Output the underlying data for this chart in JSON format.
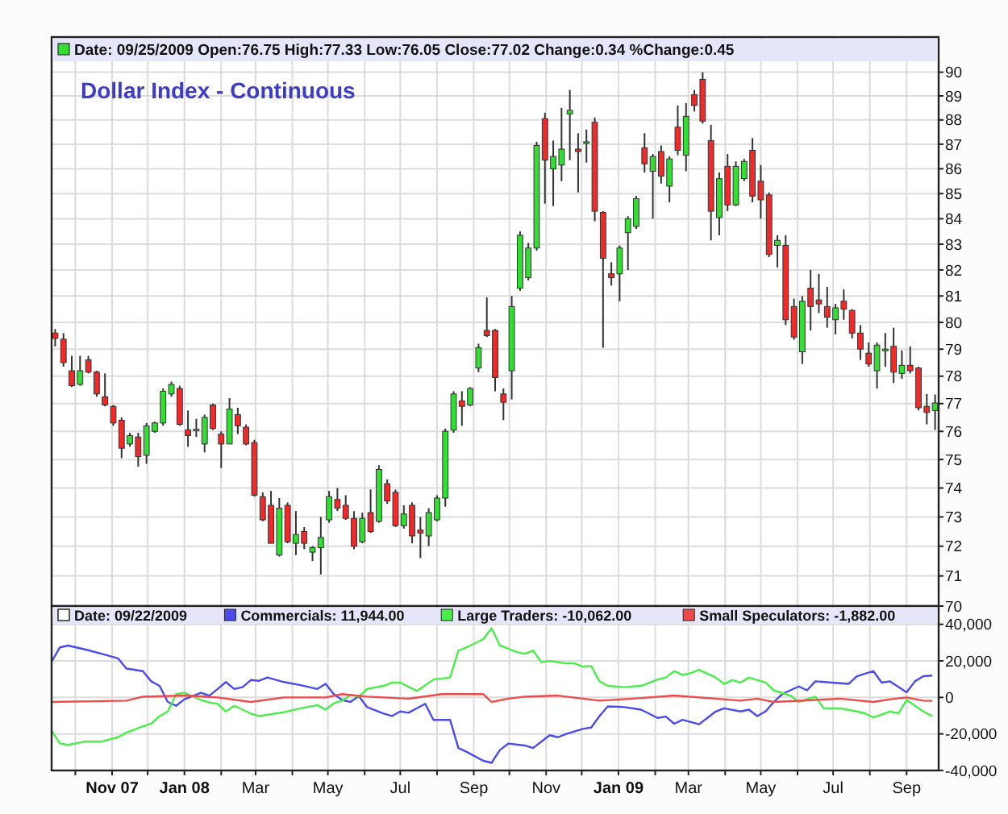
{
  "chart_data": [
    {
      "type": "candlestick",
      "title": "Dollar Index - Continuous",
      "subtitle": "Date: 09/25/2009 Open:76.75 High:77.33 Low:76.05 Close:77.02 Change:0.34 %Change:0.45",
      "log": true,
      "grid": true,
      "tick_labels": "y",
      "xlim": [
        "2007-09-11",
        "2009-09-28"
      ],
      "xticks": [
        {
          "value": "2007-10-01",
          "label": null
        },
        {
          "value": "2007-11-01",
          "label": null
        },
        {
          "value": "2007-12-01",
          "label": null
        },
        {
          "value": "2008-01-01",
          "label": null
        },
        {
          "value": "2008-02-01",
          "label": null
        },
        {
          "value": "2008-03-01",
          "label": null
        },
        {
          "value": "2008-04-01",
          "label": null
        },
        {
          "value": "2008-05-01",
          "label": null
        },
        {
          "value": "2008-06-01",
          "label": null
        },
        {
          "value": "2008-07-01",
          "label": null
        },
        {
          "value": "2008-08-01",
          "label": null
        },
        {
          "value": "2008-09-01",
          "label": null
        },
        {
          "value": "2008-10-01",
          "label": null
        },
        {
          "value": "2008-11-01",
          "label": null
        },
        {
          "value": "2008-12-01",
          "label": null
        },
        {
          "value": "2009-01-01",
          "label": null
        },
        {
          "value": "2009-02-01",
          "label": null
        },
        {
          "value": "2009-03-01",
          "label": null
        },
        {
          "value": "2009-04-01",
          "label": null
        },
        {
          "value": "2009-05-01",
          "label": null
        },
        {
          "value": "2009-06-01",
          "label": null
        },
        {
          "value": "2009-07-01",
          "label": null
        },
        {
          "value": "2009-08-01",
          "label": null
        },
        {
          "value": "2009-09-01",
          "label": null
        }
      ],
      "ylim": [
        70,
        91.5
      ],
      "yticks": [
        70,
        71,
        72,
        73,
        74,
        75,
        76,
        77,
        78,
        79,
        80,
        81,
        82,
        83,
        84,
        85,
        86,
        87,
        88,
        89,
        90
      ],
      "x": [
        "2007-09-14",
        "2007-09-21",
        "2007-09-28",
        "2007-10-05",
        "2007-10-12",
        "2007-10-19",
        "2007-10-26",
        "2007-11-02",
        "2007-11-09",
        "2007-11-16",
        "2007-11-23",
        "2007-11-30",
        "2007-12-07",
        "2007-12-14",
        "2007-12-21",
        "2007-12-28",
        "2008-01-04",
        "2008-01-11",
        "2008-01-18",
        "2008-01-25",
        "2008-02-01",
        "2008-02-08",
        "2008-02-15",
        "2008-02-22",
        "2008-02-29",
        "2008-03-07",
        "2008-03-14",
        "2008-03-21",
        "2008-03-28",
        "2008-04-04",
        "2008-04-11",
        "2008-04-18",
        "2008-04-25",
        "2008-05-02",
        "2008-05-09",
        "2008-05-16",
        "2008-05-23",
        "2008-05-30",
        "2008-06-06",
        "2008-06-13",
        "2008-06-20",
        "2008-06-27",
        "2008-07-04",
        "2008-07-11",
        "2008-07-18",
        "2008-07-25",
        "2008-08-01",
        "2008-08-08",
        "2008-08-15",
        "2008-08-22",
        "2008-08-29",
        "2008-09-05",
        "2008-09-12",
        "2008-09-19",
        "2008-09-26",
        "2008-10-03",
        "2008-10-10",
        "2008-10-17",
        "2008-10-24",
        "2008-10-31",
        "2008-11-07",
        "2008-11-14",
        "2008-11-21",
        "2008-11-28",
        "2008-12-05",
        "2008-12-12",
        "2008-12-19",
        "2008-12-26",
        "2009-01-02",
        "2009-01-09",
        "2009-01-16",
        "2009-01-23",
        "2009-01-30",
        "2009-02-06",
        "2009-02-13",
        "2009-02-20",
        "2009-02-27",
        "2009-03-06",
        "2009-03-13",
        "2009-03-20",
        "2009-03-27",
        "2009-04-03",
        "2009-04-10",
        "2009-04-17",
        "2009-04-24",
        "2009-05-01",
        "2009-05-08",
        "2009-05-15",
        "2009-05-22",
        "2009-05-29",
        "2009-06-05",
        "2009-06-12",
        "2009-06-19",
        "2009-06-26",
        "2009-07-03",
        "2009-07-10",
        "2009-07-17",
        "2009-07-24",
        "2009-07-31",
        "2009-08-07",
        "2009-08-14",
        "2009-08-21",
        "2009-08-28",
        "2009-09-04",
        "2009-09-11",
        "2009-09-18",
        "2009-09-25"
      ],
      "ohlc": [
        [
          79.6,
          79.75,
          79.1,
          79.4
        ],
        [
          79.37,
          79.6,
          78.35,
          78.5
        ],
        [
          78.2,
          78.75,
          77.6,
          77.65
        ],
        [
          77.7,
          78.75,
          77.65,
          78.2
        ],
        [
          78.6,
          78.75,
          78.1,
          78.15
        ],
        [
          78.15,
          78.2,
          77.25,
          77.35
        ],
        [
          77.25,
          78.1,
          76.9,
          76.95
        ],
        [
          76.9,
          76.95,
          76.2,
          76.3
        ],
        [
          76.4,
          76.5,
          75.05,
          75.4
        ],
        [
          75.55,
          75.95,
          75.45,
          75.85
        ],
        [
          75.8,
          75.95,
          74.75,
          75.1
        ],
        [
          75.15,
          76.3,
          74.85,
          76.2
        ],
        [
          76.0,
          76.35,
          75.95,
          76.3
        ],
        [
          76.3,
          77.55,
          76.2,
          77.45
        ],
        [
          77.35,
          77.8,
          77.25,
          77.7
        ],
        [
          77.55,
          77.65,
          76.2,
          76.25
        ],
        [
          76.05,
          76.75,
          75.45,
          75.85
        ],
        [
          76.03,
          76.45,
          75.8,
          76.08
        ],
        [
          75.55,
          76.6,
          75.25,
          76.5
        ],
        [
          76.95,
          77.0,
          76.05,
          76.1
        ],
        [
          75.9,
          76.0,
          74.7,
          75.55
        ],
        [
          75.55,
          77.2,
          75.55,
          76.8
        ],
        [
          76.6,
          76.85,
          75.9,
          76.2
        ],
        [
          76.15,
          76.25,
          75.5,
          75.55
        ],
        [
          75.6,
          75.7,
          73.7,
          73.75
        ],
        [
          73.7,
          73.85,
          72.85,
          72.9
        ],
        [
          73.4,
          73.9,
          72.1,
          72.1
        ],
        [
          71.7,
          73.65,
          71.65,
          73.3
        ],
        [
          73.4,
          73.5,
          72.1,
          72.15
        ],
        [
          72.1,
          73.2,
          71.7,
          72.4
        ],
        [
          72.5,
          72.65,
          71.9,
          72.1
        ],
        [
          71.8,
          72.0,
          71.5,
          71.95
        ],
        [
          71.95,
          73.0,
          71.05,
          72.3
        ],
        [
          72.9,
          73.9,
          72.8,
          73.7
        ],
        [
          73.6,
          74.0,
          73.2,
          73.3
        ],
        [
          73.4,
          73.75,
          72.9,
          72.95
        ],
        [
          72.95,
          73.2,
          71.9,
          72.0
        ],
        [
          72.15,
          73.15,
          72.1,
          72.95
        ],
        [
          73.15,
          73.95,
          72.45,
          72.5
        ],
        [
          72.85,
          74.8,
          72.8,
          74.65
        ],
        [
          74.15,
          74.3,
          73.45,
          73.55
        ],
        [
          73.85,
          73.95,
          72.65,
          72.7
        ],
        [
          72.7,
          73.4,
          72.6,
          73.1
        ],
        [
          73.4,
          73.5,
          72.1,
          72.35
        ],
        [
          72.55,
          73.0,
          71.6,
          72.45
        ],
        [
          72.35,
          73.3,
          72.0,
          73.15
        ],
        [
          72.9,
          73.75,
          72.85,
          73.65
        ],
        [
          73.65,
          76.1,
          73.35,
          76.0
        ],
        [
          76.05,
          77.45,
          75.95,
          77.35
        ],
        [
          77.1,
          77.45,
          76.2,
          76.9
        ],
        [
          76.95,
          77.6,
          76.9,
          77.55
        ],
        [
          78.3,
          79.2,
          78.15,
          79.05
        ],
        [
          79.7,
          80.95,
          79.45,
          79.5
        ],
        [
          79.7,
          79.75,
          77.45,
          77.95
        ],
        [
          77.35,
          77.55,
          76.4,
          77.05
        ],
        [
          78.2,
          81.0,
          77.15,
          80.6
        ],
        [
          81.3,
          83.5,
          81.2,
          83.35
        ],
        [
          81.7,
          83.05,
          81.6,
          82.85
        ],
        [
          82.85,
          87.1,
          82.75,
          86.95
        ],
        [
          88.05,
          88.3,
          84.6,
          86.35
        ],
        [
          86.0,
          87.15,
          84.5,
          86.5
        ],
        [
          86.15,
          88.5,
          85.5,
          86.8
        ],
        [
          88.25,
          89.25,
          86.35,
          88.4
        ],
        [
          86.8,
          87.45,
          85.05,
          86.7
        ],
        [
          87.05,
          87.6,
          86.25,
          87.1
        ],
        [
          87.9,
          88.1,
          83.9,
          84.3
        ],
        [
          84.25,
          84.3,
          79.05,
          82.45
        ],
        [
          81.85,
          82.3,
          81.4,
          81.7
        ],
        [
          81.85,
          82.95,
          80.8,
          82.85
        ],
        [
          83.45,
          84.1,
          82.0,
          84.0
        ],
        [
          83.7,
          84.9,
          83.6,
          84.8
        ],
        [
          86.85,
          87.45,
          85.85,
          86.2
        ],
        [
          85.9,
          86.6,
          84.0,
          86.5
        ],
        [
          86.7,
          86.95,
          85.4,
          85.7
        ],
        [
          85.3,
          86.5,
          84.65,
          86.4
        ],
        [
          87.7,
          88.6,
          86.55,
          86.75
        ],
        [
          86.55,
          88.7,
          85.9,
          88.15
        ],
        [
          89.05,
          89.25,
          88.35,
          88.6
        ],
        [
          89.7,
          90.0,
          87.85,
          87.95
        ],
        [
          87.15,
          87.8,
          83.15,
          84.3
        ],
        [
          84.05,
          85.85,
          83.35,
          85.6
        ],
        [
          86.1,
          86.6,
          84.3,
          84.55
        ],
        [
          84.55,
          86.3,
          84.5,
          86.1
        ],
        [
          85.6,
          86.4,
          85.5,
          86.3
        ],
        [
          86.75,
          87.25,
          84.65,
          84.9
        ],
        [
          85.5,
          86.15,
          84.0,
          84.75
        ],
        [
          84.95,
          85.05,
          82.5,
          82.6
        ],
        [
          82.95,
          83.35,
          82.1,
          83.15
        ],
        [
          82.95,
          83.35,
          79.9,
          80.1
        ],
        [
          80.6,
          80.9,
          79.35,
          79.45
        ],
        [
          78.9,
          81.0,
          78.45,
          80.8
        ],
        [
          81.3,
          82.0,
          79.7,
          80.6
        ],
        [
          80.85,
          81.85,
          80.35,
          80.7
        ],
        [
          80.6,
          81.35,
          79.8,
          80.2
        ],
        [
          80.1,
          80.7,
          79.55,
          80.55
        ],
        [
          80.8,
          81.25,
          80.1,
          80.5
        ],
        [
          80.45,
          80.5,
          79.4,
          79.6
        ],
        [
          79.6,
          79.9,
          78.6,
          79.0
        ],
        [
          78.85,
          79.25,
          78.35,
          78.45
        ],
        [
          78.2,
          79.25,
          77.55,
          79.15
        ],
        [
          78.95,
          79.6,
          78.35,
          79.0
        ],
        [
          79.1,
          79.8,
          77.75,
          78.15
        ],
        [
          78.1,
          78.95,
          77.9,
          78.4
        ],
        [
          78.4,
          79.1,
          78.1,
          78.2
        ],
        [
          78.3,
          78.35,
          76.75,
          76.85
        ],
        [
          76.9,
          77.35,
          76.25,
          76.68
        ],
        [
          76.75,
          77.33,
          76.05,
          77.02
        ]
      ],
      "colors": [
        "#ee2a2a",
        "#ee2a2a",
        "#ee2a2a",
        "#33dd33",
        "#ee2a2a",
        "#ee2a2a",
        "#ee2a2a",
        "#ee2a2a",
        "#ee2a2a",
        "#33dd33",
        "#ee2a2a",
        "#33dd33",
        "#33dd33",
        "#33dd33",
        "#33dd33",
        "#ee2a2a",
        "#ee2a2a",
        "#33dd33",
        "#33dd33",
        "#ee2a2a",
        "#ee2a2a",
        "#33dd33",
        "#ee2a2a",
        "#ee2a2a",
        "#ee2a2a",
        "#ee2a2a",
        "#ee2a2a",
        "#33dd33",
        "#ee2a2a",
        "#33dd33",
        "#ee2a2a",
        "#33dd33",
        "#33dd33",
        "#33dd33",
        "#ee2a2a",
        "#ee2a2a",
        "#ee2a2a",
        "#33dd33",
        "#ee2a2a",
        "#33dd33",
        "#ee2a2a",
        "#ee2a2a",
        "#33dd33",
        "#ee2a2a",
        "#ee2a2a",
        "#33dd33",
        "#33dd33",
        "#33dd33",
        "#33dd33",
        "#ee2a2a",
        "#33dd33",
        "#33dd33",
        "#ee2a2a",
        "#ee2a2a",
        "#ee2a2a",
        "#33dd33",
        "#33dd33",
        "#33dd33",
        "#33dd33",
        "#ee2a2a",
        "#33dd33",
        "#33dd33",
        "#33dd33",
        "#ee2a2a",
        "#33dd33",
        "#ee2a2a",
        "#ee2a2a",
        "#ee2a2a",
        "#33dd33",
        "#33dd33",
        "#33dd33",
        "#ee2a2a",
        "#33dd33",
        "#ee2a2a",
        "#33dd33",
        "#ee2a2a",
        "#33dd33",
        "#ee2a2a",
        "#ee2a2a",
        "#ee2a2a",
        "#33dd33",
        "#ee2a2a",
        "#33dd33",
        "#33dd33",
        "#ee2a2a",
        "#ee2a2a",
        "#ee2a2a",
        "#33dd33",
        "#ee2a2a",
        "#ee2a2a",
        "#33dd33",
        "#ee2a2a",
        "#ee2a2a",
        "#ee2a2a",
        "#33dd33",
        "#ee2a2a",
        "#ee2a2a",
        "#ee2a2a",
        "#ee2a2a",
        "#33dd33",
        "#33dd33",
        "#ee2a2a",
        "#33dd33",
        "#ee2a2a",
        "#ee2a2a",
        "#ee2a2a",
        "#33dd33"
      ]
    },
    {
      "type": "line",
      "legend_title": "Date: 09/22/2009",
      "legend": "top",
      "grid": true,
      "xlim": [
        "2007-09-11",
        "2009-09-28"
      ],
      "xticks": [
        {
          "value": "2007-10-01",
          "label": null
        },
        {
          "value": "2007-11-01",
          "label": "Nov 07"
        },
        {
          "value": "2007-12-01",
          "label": null
        },
        {
          "value": "2008-01-01",
          "label": "Jan 08"
        },
        {
          "value": "2008-02-01",
          "label": null
        },
        {
          "value": "2008-03-01",
          "label": "Mar"
        },
        {
          "value": "2008-04-01",
          "label": null
        },
        {
          "value": "2008-05-01",
          "label": "May"
        },
        {
          "value": "2008-06-01",
          "label": null
        },
        {
          "value": "2008-07-01",
          "label": "Jul"
        },
        {
          "value": "2008-08-01",
          "label": null
        },
        {
          "value": "2008-09-01",
          "label": "Sep"
        },
        {
          "value": "2008-10-01",
          "label": null
        },
        {
          "value": "2008-11-01",
          "label": "Nov"
        },
        {
          "value": "2008-12-01",
          "label": null
        },
        {
          "value": "2009-01-01",
          "label": "Jan 09"
        },
        {
          "value": "2009-02-01",
          "label": null
        },
        {
          "value": "2009-03-01",
          "label": "Mar"
        },
        {
          "value": "2009-04-01",
          "label": null
        },
        {
          "value": "2009-05-01",
          "label": "May"
        },
        {
          "value": "2009-06-01",
          "label": null
        },
        {
          "value": "2009-07-01",
          "label": "Jul"
        },
        {
          "value": "2009-08-01",
          "label": null
        },
        {
          "value": "2009-09-01",
          "label": "Sep"
        }
      ],
      "ylim": [
        -40000,
        50000
      ],
      "yticks": [
        {
          "value": -40000,
          "label": "-40,000"
        },
        {
          "value": -20000,
          "label": "-20,000"
        },
        0,
        {
          "value": 20000,
          "label": "20,000"
        },
        {
          "value": 40000,
          "label": "40,000"
        }
      ],
      "series": [
        {
          "name": "Commercials: 11,944.00",
          "color": "#4a4aee",
          "x": [
            "2007-09-11",
            "2007-09-18",
            "2007-09-25",
            "2007-10-09",
            "2007-10-23",
            "2007-11-06",
            "2007-11-13",
            "2007-11-27",
            "2007-12-04",
            "2007-12-11",
            "2007-12-18",
            "2007-12-25",
            "2008-01-01",
            "2008-01-15",
            "2008-01-22",
            "2008-01-29",
            "2008-02-05",
            "2008-02-12",
            "2008-02-19",
            "2008-02-26",
            "2008-03-04",
            "2008-03-11",
            "2008-03-25",
            "2008-04-08",
            "2008-04-22",
            "2008-04-29",
            "2008-05-06",
            "2008-05-13",
            "2008-05-20",
            "2008-05-27",
            "2008-06-03",
            "2008-06-17",
            "2008-06-24",
            "2008-07-01",
            "2008-07-08",
            "2008-07-22",
            "2008-07-29",
            "2008-08-12",
            "2008-08-19",
            "2008-08-26",
            "2008-09-09",
            "2008-09-16",
            "2008-09-23",
            "2008-09-30",
            "2008-10-14",
            "2008-10-21",
            "2008-11-04",
            "2008-11-11",
            "2008-11-18",
            "2008-12-02",
            "2008-12-09",
            "2008-12-16",
            "2008-12-23",
            "2009-01-06",
            "2009-01-20",
            "2009-02-03",
            "2009-02-10",
            "2009-02-17",
            "2009-02-24",
            "2009-03-10",
            "2009-03-17",
            "2009-03-24",
            "2009-03-31",
            "2009-04-14",
            "2009-04-21",
            "2009-04-28",
            "2009-05-05",
            "2009-05-12",
            "2009-05-19",
            "2009-06-02",
            "2009-06-09",
            "2009-06-16",
            "2009-06-30",
            "2009-07-14",
            "2009-07-21",
            "2009-08-04",
            "2009-08-11",
            "2009-08-18",
            "2009-09-01",
            "2009-09-08",
            "2009-09-15",
            "2009-09-22"
          ],
          "values": [
            19600,
            27400,
            28400,
            26300,
            23900,
            21400,
            15800,
            14400,
            8800,
            6300,
            -2500,
            -4600,
            -1000,
            2500,
            1000,
            4600,
            8400,
            4600,
            5600,
            9500,
            9100,
            10900,
            8400,
            6700,
            4600,
            7400,
            1800,
            -1400,
            -2500,
            700,
            -5300,
            -8800,
            -10200,
            -7700,
            -8400,
            -3500,
            -12300,
            -12300,
            -27700,
            -29800,
            -34700,
            -35800,
            -28800,
            -25300,
            -26300,
            -27700,
            -20700,
            -21800,
            -20000,
            -17200,
            -16500,
            -10200,
            -4900,
            -5300,
            -6700,
            -11200,
            -10500,
            -14400,
            -12300,
            -14700,
            -11200,
            -7700,
            -6000,
            -7700,
            -6700,
            -10200,
            -7700,
            -2500,
            1800,
            6000,
            3900,
            8800,
            8100,
            7400,
            11600,
            14400,
            8100,
            8800,
            2800,
            8800,
            11600,
            11944
          ]
        },
        {
          "name": "Large Traders: -10,062.00",
          "color": "#4aee4a",
          "x": [
            "2007-09-11",
            "2007-09-18",
            "2007-09-25",
            "2007-10-09",
            "2007-10-23",
            "2007-11-06",
            "2007-11-13",
            "2007-11-27",
            "2007-12-04",
            "2007-12-11",
            "2007-12-18",
            "2007-12-25",
            "2008-01-01",
            "2008-01-15",
            "2008-01-22",
            "2008-01-29",
            "2008-02-05",
            "2008-02-12",
            "2008-02-19",
            "2008-02-26",
            "2008-03-04",
            "2008-03-11",
            "2008-03-25",
            "2008-04-08",
            "2008-04-22",
            "2008-04-29",
            "2008-05-06",
            "2008-05-13",
            "2008-05-20",
            "2008-05-27",
            "2008-06-03",
            "2008-06-17",
            "2008-06-24",
            "2008-07-01",
            "2008-07-15",
            "2008-07-29",
            "2008-08-12",
            "2008-08-19",
            "2008-08-26",
            "2008-09-09",
            "2008-09-16",
            "2008-09-23",
            "2008-10-07",
            "2008-10-14",
            "2008-10-21",
            "2008-10-28",
            "2008-11-04",
            "2008-11-18",
            "2008-11-25",
            "2008-12-02",
            "2008-12-09",
            "2008-12-16",
            "2008-12-23",
            "2009-01-06",
            "2009-01-20",
            "2009-02-03",
            "2009-02-10",
            "2009-02-17",
            "2009-02-24",
            "2009-03-03",
            "2009-03-10",
            "2009-03-24",
            "2009-03-31",
            "2009-04-07",
            "2009-04-14",
            "2009-04-21",
            "2009-05-05",
            "2009-05-12",
            "2009-05-26",
            "2009-06-02",
            "2009-06-16",
            "2009-06-23",
            "2009-07-07",
            "2009-07-21",
            "2009-07-28",
            "2009-08-04",
            "2009-08-18",
            "2009-08-25",
            "2009-09-01",
            "2009-09-15",
            "2009-09-22"
          ],
          "values": [
            -18200,
            -25300,
            -26000,
            -24200,
            -24200,
            -21800,
            -19300,
            -15800,
            -14400,
            -10200,
            -7700,
            1800,
            2500,
            -1400,
            -2800,
            -3500,
            -7700,
            -4600,
            -6700,
            -8800,
            -10200,
            -9500,
            -8100,
            -6000,
            -4200,
            -6700,
            -3200,
            -1800,
            1400,
            400,
            4600,
            6300,
            8100,
            8100,
            3500,
            9800,
            10900,
            25600,
            27400,
            31900,
            37900,
            28400,
            24900,
            23900,
            25600,
            19300,
            20000,
            18600,
            18600,
            16800,
            17200,
            8800,
            6300,
            5600,
            6300,
            9800,
            10900,
            14400,
            12300,
            13300,
            15100,
            10900,
            7400,
            9500,
            8100,
            10900,
            8100,
            3900,
            1000,
            -2500,
            400,
            -6000,
            -6000,
            -7700,
            -8800,
            -10900,
            -7700,
            -8800,
            -1400,
            -7700,
            -10062
          ]
        },
        {
          "name": "Small Speculators: -1,882.00",
          "color": "#ee4a4a",
          "x": [
            "2007-09-11",
            "2007-11-13",
            "2007-11-27",
            "2008-01-01",
            "2008-01-29",
            "2008-02-26",
            "2008-03-25",
            "2008-04-29",
            "2008-05-13",
            "2008-06-03",
            "2008-07-08",
            "2008-08-05",
            "2008-09-09",
            "2008-09-16",
            "2008-09-30",
            "2008-10-14",
            "2008-11-11",
            "2008-12-16",
            "2009-01-13",
            "2009-02-17",
            "2009-03-24",
            "2009-04-14",
            "2009-04-28",
            "2009-05-12",
            "2009-06-16",
            "2009-07-07",
            "2009-08-04",
            "2009-08-18",
            "2009-09-01",
            "2009-09-15",
            "2009-09-22"
          ],
          "values": [
            -2500,
            -1800,
            400,
            1000,
            0,
            -2500,
            0,
            0,
            1800,
            400,
            -700,
            1800,
            1800,
            -2500,
            -700,
            400,
            1000,
            -1800,
            -700,
            1000,
            -700,
            -1800,
            -700,
            -2500,
            -1400,
            -700,
            -2500,
            -1000,
            0,
            -1800,
            -1882
          ]
        }
      ]
    }
  ]
}
